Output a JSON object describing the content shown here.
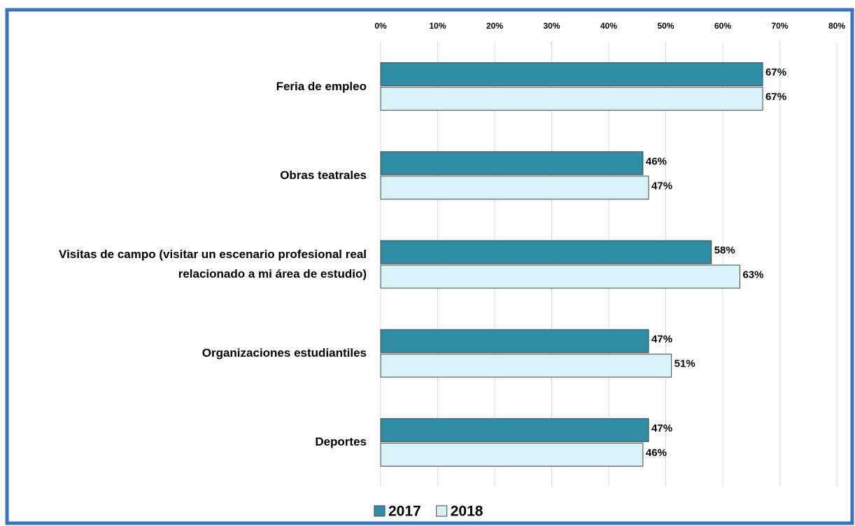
{
  "chart_data": {
    "type": "hbar",
    "categories": [
      "Feria de empleo",
      "Obras teatrales",
      "Visitas de campo (visitar un escenario profesional real relacionado a mi área de estudio)",
      "Organizaciones estudiantiles",
      "Deportes"
    ],
    "series": [
      {
        "name": "2017",
        "color": "#2f8ea4",
        "values": [
          67,
          46,
          58,
          47,
          47
        ],
        "value_labels": [
          "67%",
          "46%",
          "58%",
          "47%",
          "47%"
        ]
      },
      {
        "name": "2018",
        "color": "#d8f2f8",
        "values": [
          67,
          47,
          63,
          51,
          46
        ],
        "value_labels": [
          "67%",
          "47%",
          "63%",
          "51%",
          "46%"
        ]
      }
    ],
    "xlim": [
      0,
      80
    ],
    "xticks": [
      {
        "value": 0,
        "label": "0%"
      },
      {
        "value": 10,
        "label": "10%"
      },
      {
        "value": 20,
        "label": "20%"
      },
      {
        "value": 30,
        "label": "30%"
      },
      {
        "value": 40,
        "label": "40%"
      },
      {
        "value": 50,
        "label": "50%"
      },
      {
        "value": 60,
        "label": "60%"
      },
      {
        "value": 70,
        "label": "70%"
      },
      {
        "value": 80,
        "label": "80%"
      }
    ],
    "grid": true,
    "legend": "bottom"
  }
}
